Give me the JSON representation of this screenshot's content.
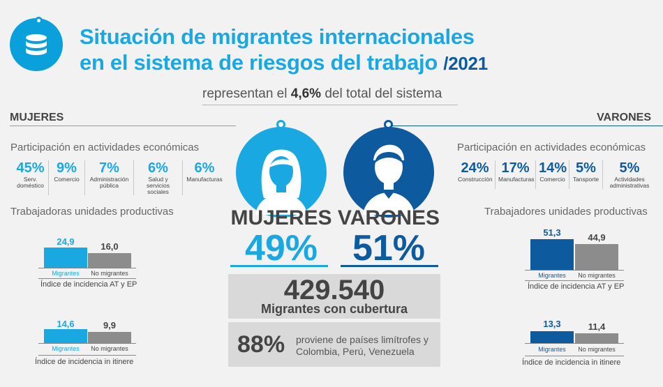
{
  "header": {
    "title_line1": "Situación de migrantes internacionales",
    "title_line2": "en el sistema de riesgos del trabajo",
    "year": "/2021",
    "subtitle_pre": "representan el ",
    "subtitle_bold": "4,6%",
    "subtitle_post": " del total del sistema",
    "icon": "database-icon"
  },
  "colors": {
    "accent_light": "#1aa8e2",
    "accent_dark": "#0e5a9e",
    "gray": "#8c8c8c"
  },
  "women": {
    "section": "MUJERES",
    "participation_title": "Participación en actividades económicas",
    "activities": [
      {
        "pct": "45%",
        "label": "Serv. doméstico"
      },
      {
        "pct": "9%",
        "label": "Comercio"
      },
      {
        "pct": "7%",
        "label": "Administración pública"
      },
      {
        "pct": "6%",
        "label": "Salud y servicios sociales"
      },
      {
        "pct": "6%",
        "label": "Manufacturas"
      }
    ],
    "workers_title": "Trabajadoras unidades productivas",
    "at_ep": {
      "migrantes": "24,9",
      "no_migrantes": "16,0",
      "mig_label": "Migrantes",
      "nomig_label": "No migrantes",
      "index_label": "Índice de incidencia AT y EP"
    },
    "itinere": {
      "migrantes": "14,6",
      "no_migrantes": "9,9",
      "mig_label": "Migrantes",
      "nomig_label": "No migrantes",
      "index_label": "Índice de incidencia in itinere"
    }
  },
  "men": {
    "section": "VARONES",
    "participation_title": "Participación en actividades económicas",
    "activities": [
      {
        "pct": "24%",
        "label": "Construcción"
      },
      {
        "pct": "17%",
        "label": "Manufacturas"
      },
      {
        "pct": "14%",
        "label": "Comercio"
      },
      {
        "pct": "5%",
        "label": "Tansporte"
      },
      {
        "pct": "5%",
        "label": "Actividades administrativas"
      }
    ],
    "workers_title": "Trabajadores unidades productivas",
    "at_ep": {
      "migrantes": "51,3",
      "no_migrantes": "44,9",
      "mig_label": "Migrantes",
      "nomig_label": "No migrantes",
      "index_label": "Índice de incidencia AT y EP"
    },
    "itinere": {
      "migrantes": "13,3",
      "no_migrantes": "11,4",
      "mig_label": "Migrantes",
      "nomig_label": "No migrantes",
      "index_label": "Índice de incidencia in itinere"
    }
  },
  "center": {
    "women_label": "MUJERES",
    "women_pct": "49%",
    "women_icon": "woman-avatar-icon",
    "men_label": "VARONES",
    "men_pct": "51%",
    "men_icon": "man-avatar-icon",
    "total": "429.540",
    "total_label": "Migrantes con cubertura",
    "pct_limitrofes": "88%",
    "origin_line1": "proviene de países limítrofes y",
    "origin_line2": "Colombia, Perú, Venezuela"
  }
}
